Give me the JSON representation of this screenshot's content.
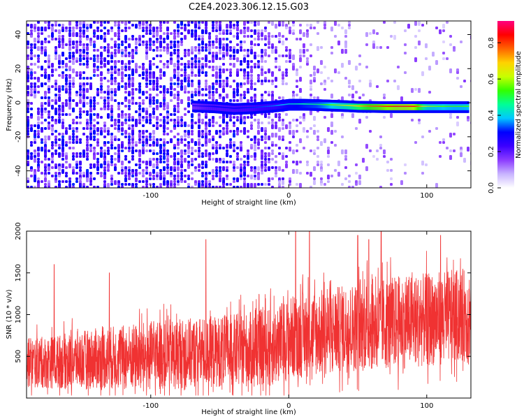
{
  "title": "C2E4.2023.306.12.15.G03",
  "colors": {
    "snr_line": "#f03232",
    "axes": "#000000",
    "colormap": [
      "#ffffff",
      "#c8b4ff",
      "#8c3cff",
      "#3c00ff",
      "#0000ff",
      "#00c8ff",
      "#00ff96",
      "#32ff00",
      "#c8ff00",
      "#ffd200",
      "#ff6400",
      "#ff0000",
      "#ff0080"
    ]
  },
  "chart_data": [
    {
      "type": "heatmap",
      "xlabel": "Height of straight line (km)",
      "ylabel": "Frequency (Hz)",
      "xlim": [
        -190,
        132
      ],
      "ylim": [
        -50,
        48
      ],
      "xticks": [
        -100,
        0,
        100
      ],
      "yticks": [
        -40,
        -20,
        0,
        20,
        40
      ],
      "colorbar": {
        "label": "Normalized spectral amplitude",
        "range": [
          0.0,
          0.92
        ],
        "ticks": [
          "0.0",
          "0.2",
          "0.4",
          "0.6",
          "0.8"
        ]
      },
      "signal_trace": {
        "description_values": {
          "x": [
            -70,
            -55,
            -40,
            -25,
            -10,
            0,
            10,
            20,
            30,
            40,
            50,
            60,
            70,
            80,
            90,
            100,
            110,
            120,
            130
          ],
          "freq": [
            -2.0,
            -2.5,
            -3.5,
            -3.0,
            -2.0,
            -1.0,
            -1.0,
            -1.2,
            -1.5,
            -1.8,
            -2.2,
            -2.3,
            -2.4,
            -2.4,
            -2.4,
            -2.4,
            -2.4,
            -2.4,
            -2.4
          ],
          "amplitude": [
            0.25,
            0.3,
            0.3,
            0.32,
            0.35,
            0.42,
            0.45,
            0.48,
            0.55,
            0.62,
            0.7,
            0.78,
            0.82,
            0.85,
            0.85,
            0.6,
            0.55,
            0.55,
            0.55
          ]
        }
      }
    },
    {
      "type": "line",
      "xlabel": "Height of straight line (km)",
      "ylabel": "SNR (10 * v/v)",
      "xlim": [
        -190,
        132
      ],
      "ylim": [
        0,
        2000
      ],
      "xticks": [
        -100,
        0,
        100
      ],
      "yticks": [
        500,
        1000,
        1500,
        2000
      ],
      "series": [
        {
          "x": [
            -190,
            -170,
            -150,
            -130,
            -110,
            -90,
            -70,
            -50,
            -30,
            -10,
            0,
            10,
            30,
            50,
            70,
            90,
            110,
            130
          ],
          "mean": [
            420,
            430,
            460,
            480,
            500,
            520,
            540,
            560,
            580,
            620,
            720,
            760,
            800,
            860,
            900,
            920,
            960,
            1000
          ],
          "spread": [
            300,
            320,
            350,
            380,
            400,
            420,
            420,
            430,
            450,
            480,
            500,
            520,
            520,
            540,
            560,
            560,
            560,
            560
          ],
          "peaks": [
            {
              "x": -170,
              "y": 1600
            },
            {
              "x": -130,
              "y": 1500
            },
            {
              "x": -60,
              "y": 1900
            },
            {
              "x": 5,
              "y": 2000
            },
            {
              "x": 15,
              "y": 2000
            },
            {
              "x": 50,
              "y": 1950
            },
            {
              "x": 58,
              "y": 1900
            },
            {
              "x": 67,
              "y": 2000
            },
            {
              "x": 110,
              "y": 1950
            }
          ]
        }
      ]
    }
  ]
}
